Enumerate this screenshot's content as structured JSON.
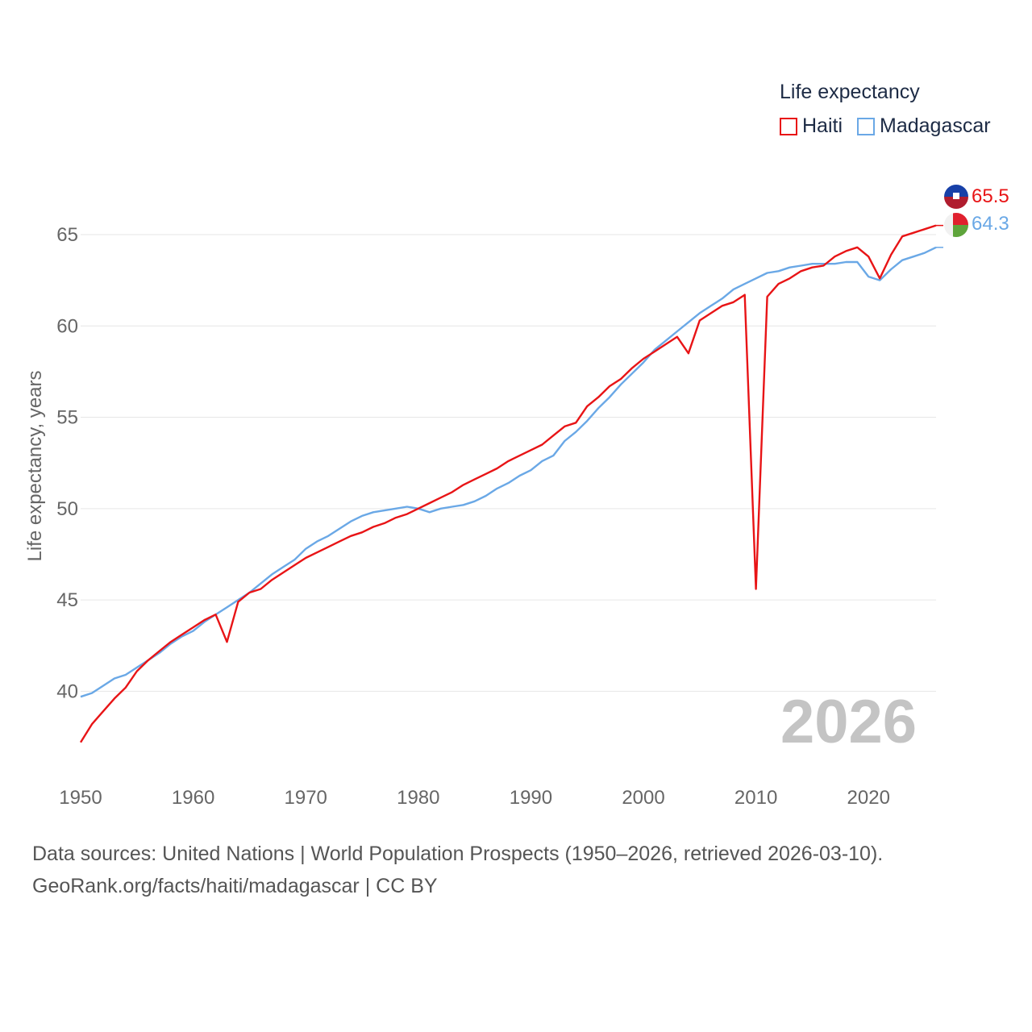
{
  "legend": {
    "title": "Life expectancy",
    "items": [
      {
        "name": "Haiti",
        "color": "#e81416"
      },
      {
        "name": "Madagascar",
        "color": "#6aa8e6"
      }
    ]
  },
  "current_year": "2026",
  "end_labels": {
    "haiti": "65.5",
    "madagascar": "64.3"
  },
  "footer": {
    "line1": "Data sources: United Nations | World Population Prospects (1950–2026, retrieved 2026-03-10).",
    "line2": "GeoRank.org/facts/haiti/madagascar | CC BY"
  },
  "chart_data": {
    "type": "line",
    "title": "Life expectancy",
    "xlabel": "",
    "ylabel": "Life expectancy, years",
    "xlim": [
      1950,
      2026
    ],
    "ylim": [
      36,
      68
    ],
    "yticks": [
      40,
      45,
      50,
      55,
      60,
      65
    ],
    "xticks": [
      1950,
      1960,
      1970,
      1980,
      1990,
      2000,
      2010,
      2020
    ],
    "grid": true,
    "x": [
      1950,
      1951,
      1952,
      1953,
      1954,
      1955,
      1956,
      1957,
      1958,
      1959,
      1960,
      1961,
      1962,
      1963,
      1964,
      1965,
      1966,
      1967,
      1968,
      1969,
      1970,
      1971,
      1972,
      1973,
      1974,
      1975,
      1976,
      1977,
      1978,
      1979,
      1980,
      1981,
      1982,
      1983,
      1984,
      1985,
      1986,
      1987,
      1988,
      1989,
      1990,
      1991,
      1992,
      1993,
      1994,
      1995,
      1996,
      1997,
      1998,
      1999,
      2000,
      2001,
      2002,
      2003,
      2004,
      2005,
      2006,
      2007,
      2008,
      2009,
      2010,
      2011,
      2012,
      2013,
      2014,
      2015,
      2016,
      2017,
      2018,
      2019,
      2020,
      2021,
      2022,
      2023,
      2024,
      2025,
      2026
    ],
    "series": [
      {
        "name": "Haiti",
        "color": "#e81416",
        "values": [
          37.2,
          38.2,
          38.9,
          39.6,
          40.2,
          41.1,
          41.7,
          42.2,
          42.7,
          43.1,
          43.5,
          43.9,
          44.2,
          42.7,
          44.9,
          45.4,
          45.6,
          46.1,
          46.5,
          46.9,
          47.3,
          47.6,
          47.9,
          48.2,
          48.5,
          48.7,
          49.0,
          49.2,
          49.5,
          49.7,
          50.0,
          50.3,
          50.6,
          50.9,
          51.3,
          51.6,
          51.9,
          52.2,
          52.6,
          52.9,
          53.2,
          53.5,
          54.0,
          54.5,
          54.7,
          55.6,
          56.1,
          56.7,
          57.1,
          57.7,
          58.2,
          58.6,
          59.0,
          59.4,
          58.5,
          60.3,
          60.7,
          61.1,
          61.3,
          61.7,
          45.6,
          61.6,
          62.3,
          62.6,
          63.0,
          63.2,
          63.3,
          63.8,
          64.1,
          64.3,
          63.8,
          62.6,
          63.9,
          64.9,
          65.1,
          65.3,
          65.5
        ]
      },
      {
        "name": "Madagascar",
        "color": "#6aa8e6",
        "values": [
          39.7,
          39.9,
          40.3,
          40.7,
          40.9,
          41.3,
          41.7,
          42.1,
          42.6,
          43.0,
          43.3,
          43.8,
          44.2,
          44.6,
          45.0,
          45.4,
          45.9,
          46.4,
          46.8,
          47.2,
          47.8,
          48.2,
          48.5,
          48.9,
          49.3,
          49.6,
          49.8,
          49.9,
          50.0,
          50.1,
          50.0,
          49.8,
          50.0,
          50.1,
          50.2,
          50.4,
          50.7,
          51.1,
          51.4,
          51.8,
          52.1,
          52.6,
          52.9,
          53.7,
          54.2,
          54.8,
          55.5,
          56.1,
          56.8,
          57.4,
          58.0,
          58.7,
          59.2,
          59.7,
          60.2,
          60.7,
          61.1,
          61.5,
          62.0,
          62.3,
          62.6,
          62.9,
          63.0,
          63.2,
          63.3,
          63.4,
          63.4,
          63.4,
          63.5,
          63.5,
          62.7,
          62.5,
          63.1,
          63.6,
          63.8,
          64.0,
          64.3
        ]
      }
    ]
  }
}
